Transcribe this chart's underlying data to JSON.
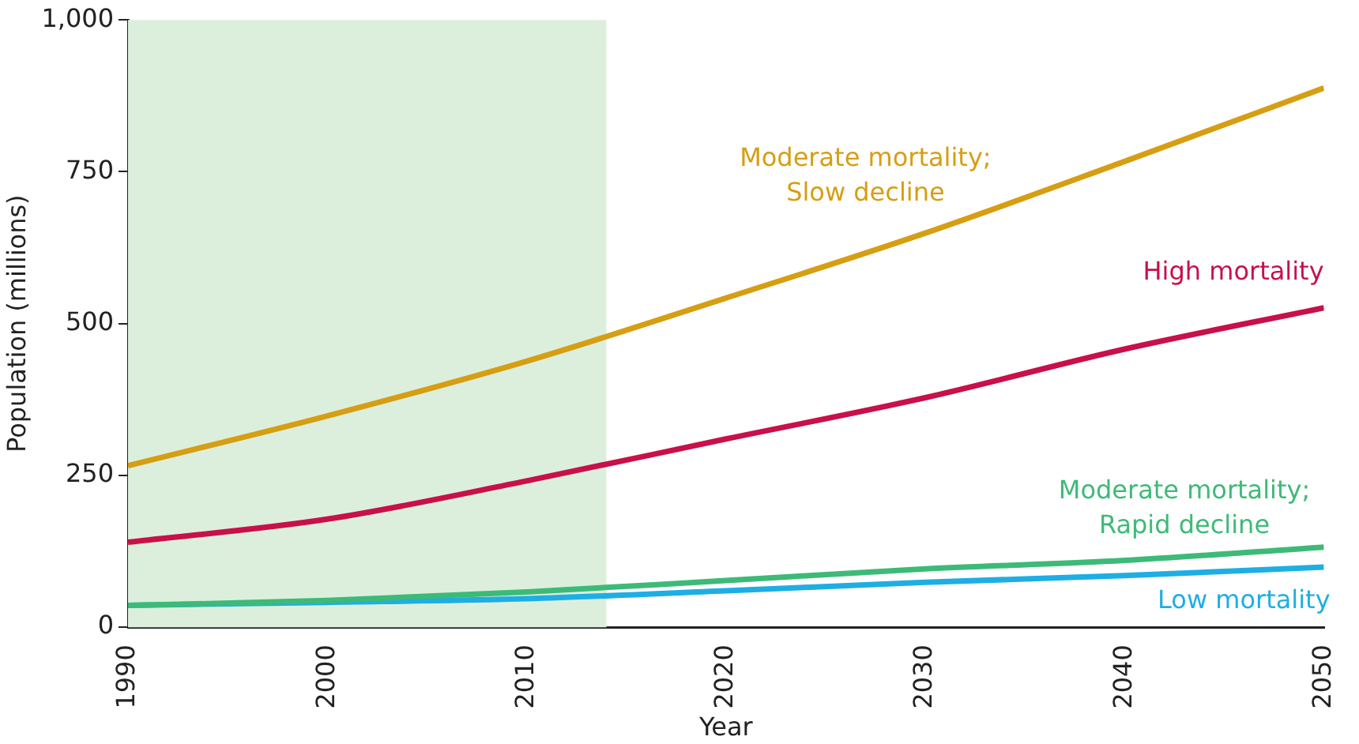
{
  "chart_data": {
    "type": "line",
    "xlabel": "Year",
    "ylabel": "Population (millions)",
    "x": [
      1990,
      2000,
      2010,
      2020,
      2030,
      2040,
      2050
    ],
    "xlim": [
      1990,
      2050
    ],
    "xticks": [
      1990,
      2000,
      2010,
      2020,
      2030,
      2040,
      2050
    ],
    "ylim": [
      0,
      1000
    ],
    "yticks": [
      0,
      250,
      500,
      750,
      {
        "value": 1000,
        "label": "1,000"
      }
    ],
    "grid": false,
    "legend": false,
    "marker": "none",
    "line_style": "solid",
    "bands": [
      {
        "axis": "x",
        "from": 1990,
        "to": 2014,
        "color": "#dcefdd"
      }
    ],
    "series": [
      {
        "name": "Moderate mortality;\nSlow decline",
        "color": "#d69e12",
        "values": [
          266,
          348,
          438,
          542,
          649,
          767,
          888
        ]
      },
      {
        "name": "High mortality",
        "color": "#c8104a",
        "values": [
          140,
          178,
          241,
          310,
          378,
          458,
          526
        ]
      },
      {
        "name": "Moderate mortality;\nRapid decline",
        "color": "#3dba78",
        "values": [
          36,
          44,
          58,
          77,
          96,
          110,
          132
        ]
      },
      {
        "name": "Low mortality",
        "color": "#1eaee3",
        "values": [
          36,
          41,
          47,
          60,
          74,
          85,
          99
        ]
      }
    ]
  }
}
